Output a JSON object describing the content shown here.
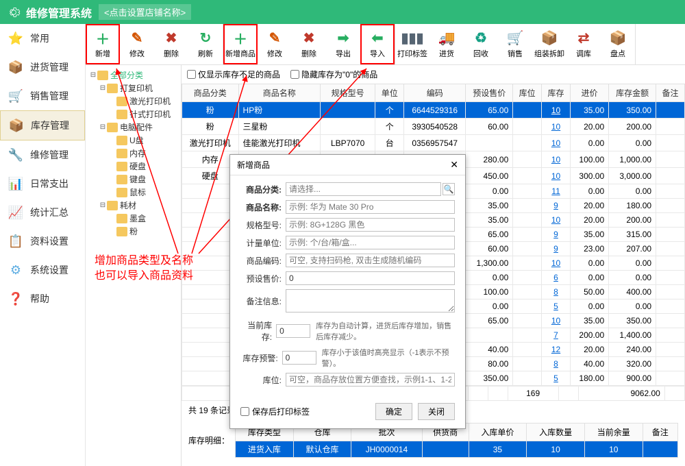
{
  "header": {
    "title": "维修管理系统",
    "subtitle": "<点击设置店铺名称>"
  },
  "sidebar": {
    "items": [
      {
        "label": "常用",
        "icon": "⭐",
        "color": "#f5b400"
      },
      {
        "label": "进货管理",
        "icon": "📦",
        "color": "#c0392b"
      },
      {
        "label": "销售管理",
        "icon": "🛒",
        "color": "#8e44ad"
      },
      {
        "label": "库存管理",
        "icon": "📦",
        "color": "#d68910",
        "active": true
      },
      {
        "label": "维修管理",
        "icon": "🔧",
        "color": "#2874a6"
      },
      {
        "label": "日常支出",
        "icon": "📊",
        "color": "#1abc9c"
      },
      {
        "label": "统计汇总",
        "icon": "📈",
        "color": "#2e86c1"
      },
      {
        "label": "资料设置",
        "icon": "📋",
        "color": "#566573"
      },
      {
        "label": "系统设置",
        "icon": "⚙",
        "color": "#5dade2"
      },
      {
        "label": "帮助",
        "icon": "❓",
        "color": "#e67e22"
      }
    ]
  },
  "toolbar": {
    "g1": [
      {
        "label": "新增",
        "icon": "＋",
        "color": "#27ae60",
        "hl": true
      },
      {
        "label": "修改",
        "icon": "✎",
        "color": "#d35400"
      },
      {
        "label": "删除",
        "icon": "✖",
        "color": "#c0392b"
      },
      {
        "label": "刷新",
        "icon": "↻",
        "color": "#27ae60"
      }
    ],
    "g2": [
      {
        "label": "新增商品",
        "icon": "＋",
        "color": "#27ae60",
        "hl": true
      },
      {
        "label": "修改",
        "icon": "✎",
        "color": "#d35400"
      },
      {
        "label": "删除",
        "icon": "✖",
        "color": "#c0392b"
      },
      {
        "label": "导出",
        "icon": "➡",
        "color": "#27ae60"
      },
      {
        "label": "导入",
        "icon": "⬅",
        "color": "#27ae60",
        "hl": true
      }
    ],
    "g3": [
      {
        "label": "打印标签",
        "icon": "▮▮▮",
        "color": "#566573"
      },
      {
        "label": "进货",
        "icon": "🚚",
        "color": "#d35400"
      },
      {
        "label": "回收",
        "icon": "♻",
        "color": "#16a085"
      },
      {
        "label": "销售",
        "icon": "🛒",
        "color": "#e74c3c"
      },
      {
        "label": "组装拆卸",
        "icon": "📦",
        "color": "#d68910"
      },
      {
        "label": "调库",
        "icon": "⇄",
        "color": "#c0392b"
      },
      {
        "label": "盘点",
        "icon": "📦",
        "color": "#d68910"
      }
    ]
  },
  "tree": {
    "root": "全部分类",
    "nodes": [
      {
        "label": "打复印机",
        "indent": 1,
        "exp": true
      },
      {
        "label": "激光打印机",
        "indent": 2
      },
      {
        "label": "针式打印机",
        "indent": 2
      },
      {
        "label": "电脑配件",
        "indent": 1,
        "exp": true
      },
      {
        "label": "U盘",
        "indent": 2
      },
      {
        "label": "内存",
        "indent": 2
      },
      {
        "label": "硬盘",
        "indent": 2
      },
      {
        "label": "键盘",
        "indent": 2
      },
      {
        "label": "鼠标",
        "indent": 2
      },
      {
        "label": "耗材",
        "indent": 1,
        "exp": true
      },
      {
        "label": "墨盒",
        "indent": 2
      },
      {
        "label": "粉",
        "indent": 2
      }
    ]
  },
  "filters": {
    "f1": "仅显示库存不足的商品",
    "f2": "隐藏库存为\"0\"的商品"
  },
  "table": {
    "cols": [
      "商品分类",
      "商品名称",
      "规格型号",
      "单位",
      "编码",
      "预设售价",
      "库位",
      "库存",
      "进价",
      "库存金额",
      "备注"
    ],
    "rows": [
      [
        "粉",
        "HP粉",
        "",
        "个",
        "6644529316",
        "65.00",
        "",
        "10",
        "35.00",
        "350.00",
        "",
        true
      ],
      [
        "粉",
        "三星粉",
        "",
        "个",
        "3930540528",
        "60.00",
        "",
        "10",
        "20.00",
        "200.00",
        ""
      ],
      [
        "激光打印机",
        "佳能激光打印机",
        "LBP7070",
        "台",
        "0356957547",
        "",
        "",
        "10",
        "0.00",
        "0.00",
        ""
      ],
      [
        "内存",
        "威刚内存条DDR4",
        "2666 8GB",
        "条",
        "0292258444",
        "280.00",
        "",
        "10",
        "100.00",
        "1,000.00",
        ""
      ],
      [
        "硬盘",
        "希捷硬盘",
        "台式机2TB",
        "块",
        "5798290016",
        "450.00",
        "",
        "10",
        "300.00",
        "3,000.00",
        ""
      ],
      [
        "",
        "",
        "",
        "",
        "",
        "0.00",
        "",
        "11",
        "0.00",
        "0.00",
        ""
      ],
      [
        "",
        "",
        "",
        "",
        "",
        "35.00",
        "",
        "9",
        "20.00",
        "180.00",
        ""
      ],
      [
        "",
        "",
        "",
        "",
        "",
        "35.00",
        "",
        "10",
        "20.00",
        "200.00",
        ""
      ],
      [
        "",
        "",
        "",
        "",
        "",
        "65.00",
        "",
        "9",
        "35.00",
        "315.00",
        ""
      ],
      [
        "",
        "",
        "",
        "",
        "",
        "60.00",
        "",
        "9",
        "23.00",
        "207.00",
        ""
      ],
      [
        "",
        "",
        "",
        "",
        "",
        "1,300.00",
        "",
        "10",
        "0.00",
        "0.00",
        ""
      ],
      [
        "",
        "",
        "",
        "",
        "",
        "0.00",
        "",
        "6",
        "0.00",
        "0.00",
        ""
      ],
      [
        "",
        "",
        "",
        "",
        "",
        "100.00",
        "",
        "8",
        "50.00",
        "400.00",
        ""
      ],
      [
        "",
        "",
        "",
        "",
        "",
        "0.00",
        "",
        "5",
        "0.00",
        "0.00",
        ""
      ],
      [
        "",
        "",
        "",
        "",
        "",
        "65.00",
        "",
        "10",
        "35.00",
        "350.00",
        ""
      ],
      [
        "",
        "",
        "",
        "",
        "",
        "",
        "",
        "7",
        "200.00",
        "1,400.00",
        ""
      ],
      [
        "",
        "",
        "",
        "",
        "",
        "40.00",
        "",
        "12",
        "20.00",
        "240.00",
        ""
      ],
      [
        "",
        "",
        "",
        "",
        "",
        "80.00",
        "",
        "8",
        "40.00",
        "320.00",
        ""
      ],
      [
        "",
        "",
        "",
        "",
        "",
        "350.00",
        "",
        "5",
        "180.00",
        "900.00",
        ""
      ]
    ],
    "totals": {
      "stock": "169",
      "amount": "9062.00"
    },
    "summary": "共 19 条记录"
  },
  "detail": {
    "label": "库存明细：",
    "cols": [
      "库存类型",
      "仓库",
      "批次",
      "供货商",
      "入库单价",
      "入库数量",
      "当前余量",
      "备注"
    ],
    "row": [
      "进货入库",
      "默认仓库",
      "JH0000014",
      "",
      "35",
      "10",
      "10",
      ""
    ]
  },
  "modal": {
    "title": "新增商品",
    "fields": {
      "category": {
        "label": "商品分类:",
        "placeholder": "请选择..."
      },
      "name": {
        "label": "商品名称:",
        "placeholder": "示例: 华为 Mate 30 Pro"
      },
      "spec": {
        "label": "规格型号:",
        "placeholder": "示例: 8G+128G 黑色"
      },
      "unit": {
        "label": "计量单位:",
        "placeholder": "示例: 个/台/箱/盒..."
      },
      "code": {
        "label": "商品编码:",
        "placeholder": "可空, 支持扫码枪, 双击生成随机编码"
      },
      "price": {
        "label": "预设售价:",
        "value": "0"
      },
      "remark": {
        "label": "备注信息:"
      },
      "stock": {
        "label": "当前库存:",
        "value": "0",
        "hint": "库存为自动计算，进货后库存增加，销售后库存减少。"
      },
      "warn": {
        "label": "库存预警:",
        "value": "0",
        "hint": "库存小于该值时高亮显示（-1表示不预警）。"
      },
      "loc": {
        "label": "库位:",
        "placeholder": "可空，商品存放位置方便查找，示例1-1、1-2"
      }
    },
    "checkbox": "保存后打印标签",
    "ok": "确定",
    "cancel": "关闭"
  },
  "annotation": {
    "line1": "增加商品类型及名称",
    "line2": "也可以导入商品资料"
  }
}
